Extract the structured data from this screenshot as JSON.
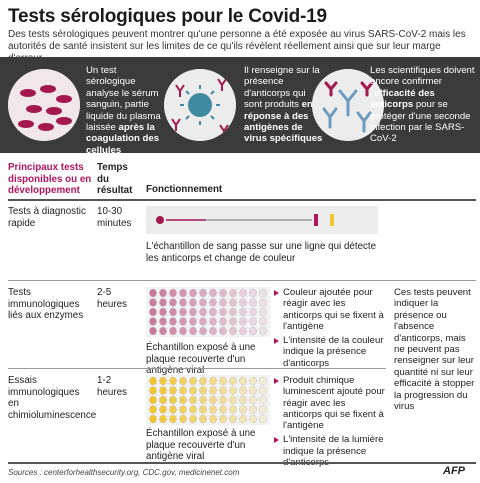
{
  "title": "Tests sérologiques pour le Covid-19",
  "intro": "Des tests sérologiques peuvent montrer qu'une personne a été exposée au virus SARS-CoV-2 mais les autorités de santé insistent sur les limites de ce qu'ils révèlent réellement ainsi que sur leur marge d'erreur",
  "band": {
    "col1": {
      "pre": "Un test sérologique analyse le sérum sanguin, partie liquide du plasma laissée ",
      "bold": "après la coagulation des cellules",
      "post": ""
    },
    "col2": {
      "pre": "Il renseigne sur la présence d'anticorps qui sont produits ",
      "bold": "en réponse à des antigènes de virus spécifiques",
      "post": ""
    },
    "col3": {
      "pre": "Les scientifiques doivent encore confirmer l'",
      "bold": "efficacité des anticorps",
      "post": " pour se protéger d'une seconde infection par le SARS-CoV-2"
    }
  },
  "table": {
    "h_tests": "Principaux tests disponibles ou en développement",
    "h_time": "Temps du résultat",
    "h_func": "Fonctionnement",
    "rows": [
      {
        "name": "Tests à diagnostic rapide",
        "time": "10-30 minutes",
        "caption": "L'échantillon de sang passe sur une ligne qui détecte les anticorps et change de couleur"
      },
      {
        "name": "Tests immunologiques liés aux enzymes",
        "time": "2-5 heures",
        "caption": "Échantillon exposé à une plaque recouverte d'un antigène viral",
        "b1": "Couleur ajoutée pour réagir avec les anticorps qui se fixent à l'antigène",
        "b2": "L'intensité de la couleur indique la présence d'anticorps"
      },
      {
        "name": "Essais immunologiques en chimioluminescence",
        "time": "1-2 heures",
        "caption": "Échantillon exposé à une plaque recouverte d'un antigène viral",
        "b1": "Produit chimique luminescent ajouté pour réagir avec les anticorps qui se fixent à l'antigène",
        "b2": "L'intensité de la lumière indique la présence d'anticorps"
      }
    ],
    "side_note": "Ces tests peuvent indiquer la présence ou l'absence d'anticorps, mais ne peuvent pas renseigner sur leur quantité ni sur leur efficacité à stopper la progression du virus"
  },
  "sources": "Sources : centerforhealthsecurity.org, CDC.gov, medicinenet.com",
  "logo": "AFP",
  "colors": {
    "accent": "#b1155e",
    "band": "#3b3b3b",
    "enzyme": "#c97a9a",
    "lumi": "#f0c530"
  },
  "icons": [
    "blood-cells-icon",
    "virus-antibody-icon",
    "antibody-icon",
    "test-strip-icon",
    "plate-enzyme-icon",
    "plate-lumi-icon"
  ]
}
